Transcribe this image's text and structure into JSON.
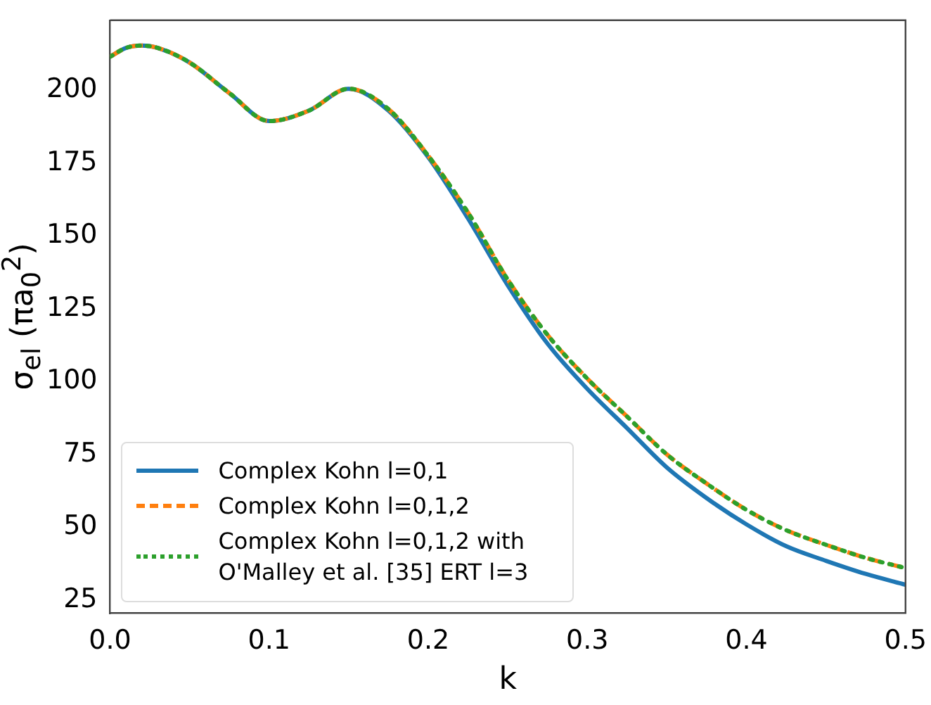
{
  "chart_data": {
    "type": "line",
    "xlabel": "k",
    "ylabel": "σ$_{el}$ (πa$_{0}$$^{2}$)",
    "x": [
      0,
      0.01,
      0.02,
      0.03,
      0.05,
      0.075,
      0.1,
      0.125,
      0.15,
      0.175,
      0.2,
      0.225,
      0.25,
      0.275,
      0.3,
      0.325,
      0.35,
      0.375,
      0.4,
      0.425,
      0.45,
      0.475,
      0.5
    ],
    "series": [
      {
        "name": "Complex Kohn l=0,1",
        "color": "#1f77b4",
        "line_style": "solid",
        "values": [
          211.5,
          214.5,
          215.3,
          214.5,
          209.5,
          199,
          189.4,
          193,
          200.5,
          193,
          177,
          156,
          133,
          113,
          97.5,
          84,
          70.5,
          60,
          51,
          43.5,
          38.5,
          34,
          30.3
        ]
      },
      {
        "name": "Complex Kohn l=0,1,2",
        "color": "#ff7f0e",
        "line_style": "dashed",
        "values": [
          211.5,
          214.5,
          215.3,
          214.5,
          209.5,
          199,
          189.4,
          193,
          200.5,
          193.5,
          177.5,
          158,
          135,
          116,
          101,
          88,
          75,
          65,
          56,
          49,
          44,
          39.5,
          36
        ]
      },
      {
        "name": "Complex Kohn l=0,1,2 with O'Malley et al. [35] ERT l=3",
        "color": "#2ca02c",
        "line_style": "dotted",
        "values": [
          211.5,
          214.5,
          215.3,
          214.5,
          209.5,
          199,
          189.4,
          193,
          200.5,
          193.5,
          177.5,
          158,
          135,
          116,
          101,
          88,
          75,
          65,
          56,
          49,
          44,
          39.5,
          36
        ]
      }
    ],
    "xlim": [
      0,
      0.5
    ],
    "xticks": [
      {
        "value": 0,
        "label": "0.0"
      },
      {
        "value": 0.1,
        "label": "0.1"
      },
      {
        "value": 0.2,
        "label": "0.2"
      },
      {
        "value": 0.3,
        "label": "0.3"
      },
      {
        "value": 0.4,
        "label": "0.4"
      },
      {
        "value": 0.5,
        "label": "0.5"
      }
    ],
    "ylim": [
      20.5,
      224
    ],
    "yticks": [
      25,
      50,
      75,
      100,
      125,
      150,
      175,
      200
    ],
    "grid": false,
    "legend": "bottom left",
    "marker": "none"
  }
}
